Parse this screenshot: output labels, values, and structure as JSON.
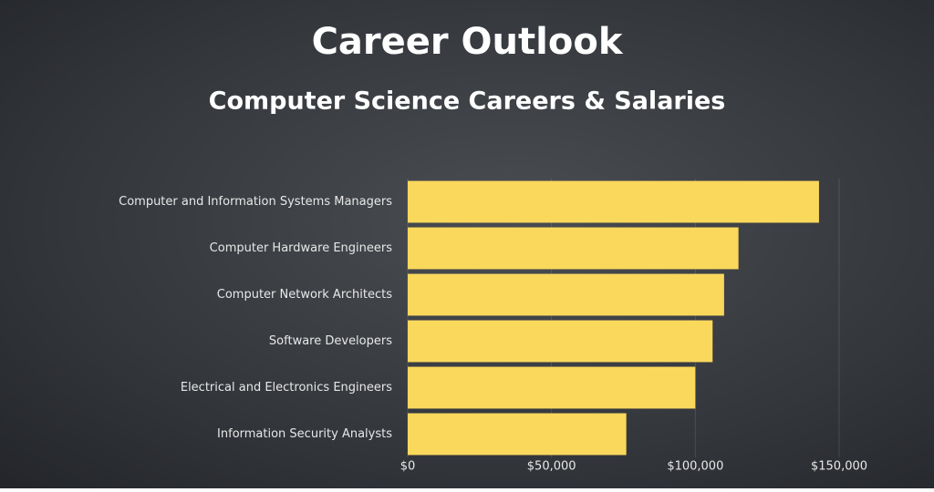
{
  "chart_data": {
    "type": "barh",
    "title": "Career Outlook",
    "subtitle": "Computer Science Careers & Salaries",
    "categories": [
      "Computer and Information Systems Managers",
      "Computer Hardware Engineers",
      "Computer Network Architects",
      "Software Developers",
      "Electrical and Electronics Engineers",
      "Information Security Analysts"
    ],
    "values": [
      143000,
      115000,
      110000,
      106000,
      100000,
      76000
    ],
    "color": "#fad85c",
    "xlim": [
      0,
      150000
    ],
    "xticks": [
      {
        "value": 0,
        "label": "$0"
      },
      {
        "value": 50000,
        "label": "$50,000"
      },
      {
        "value": 100000,
        "label": "$100,000"
      },
      {
        "value": 150000,
        "label": "$150,000"
      }
    ],
    "grid": true
  }
}
